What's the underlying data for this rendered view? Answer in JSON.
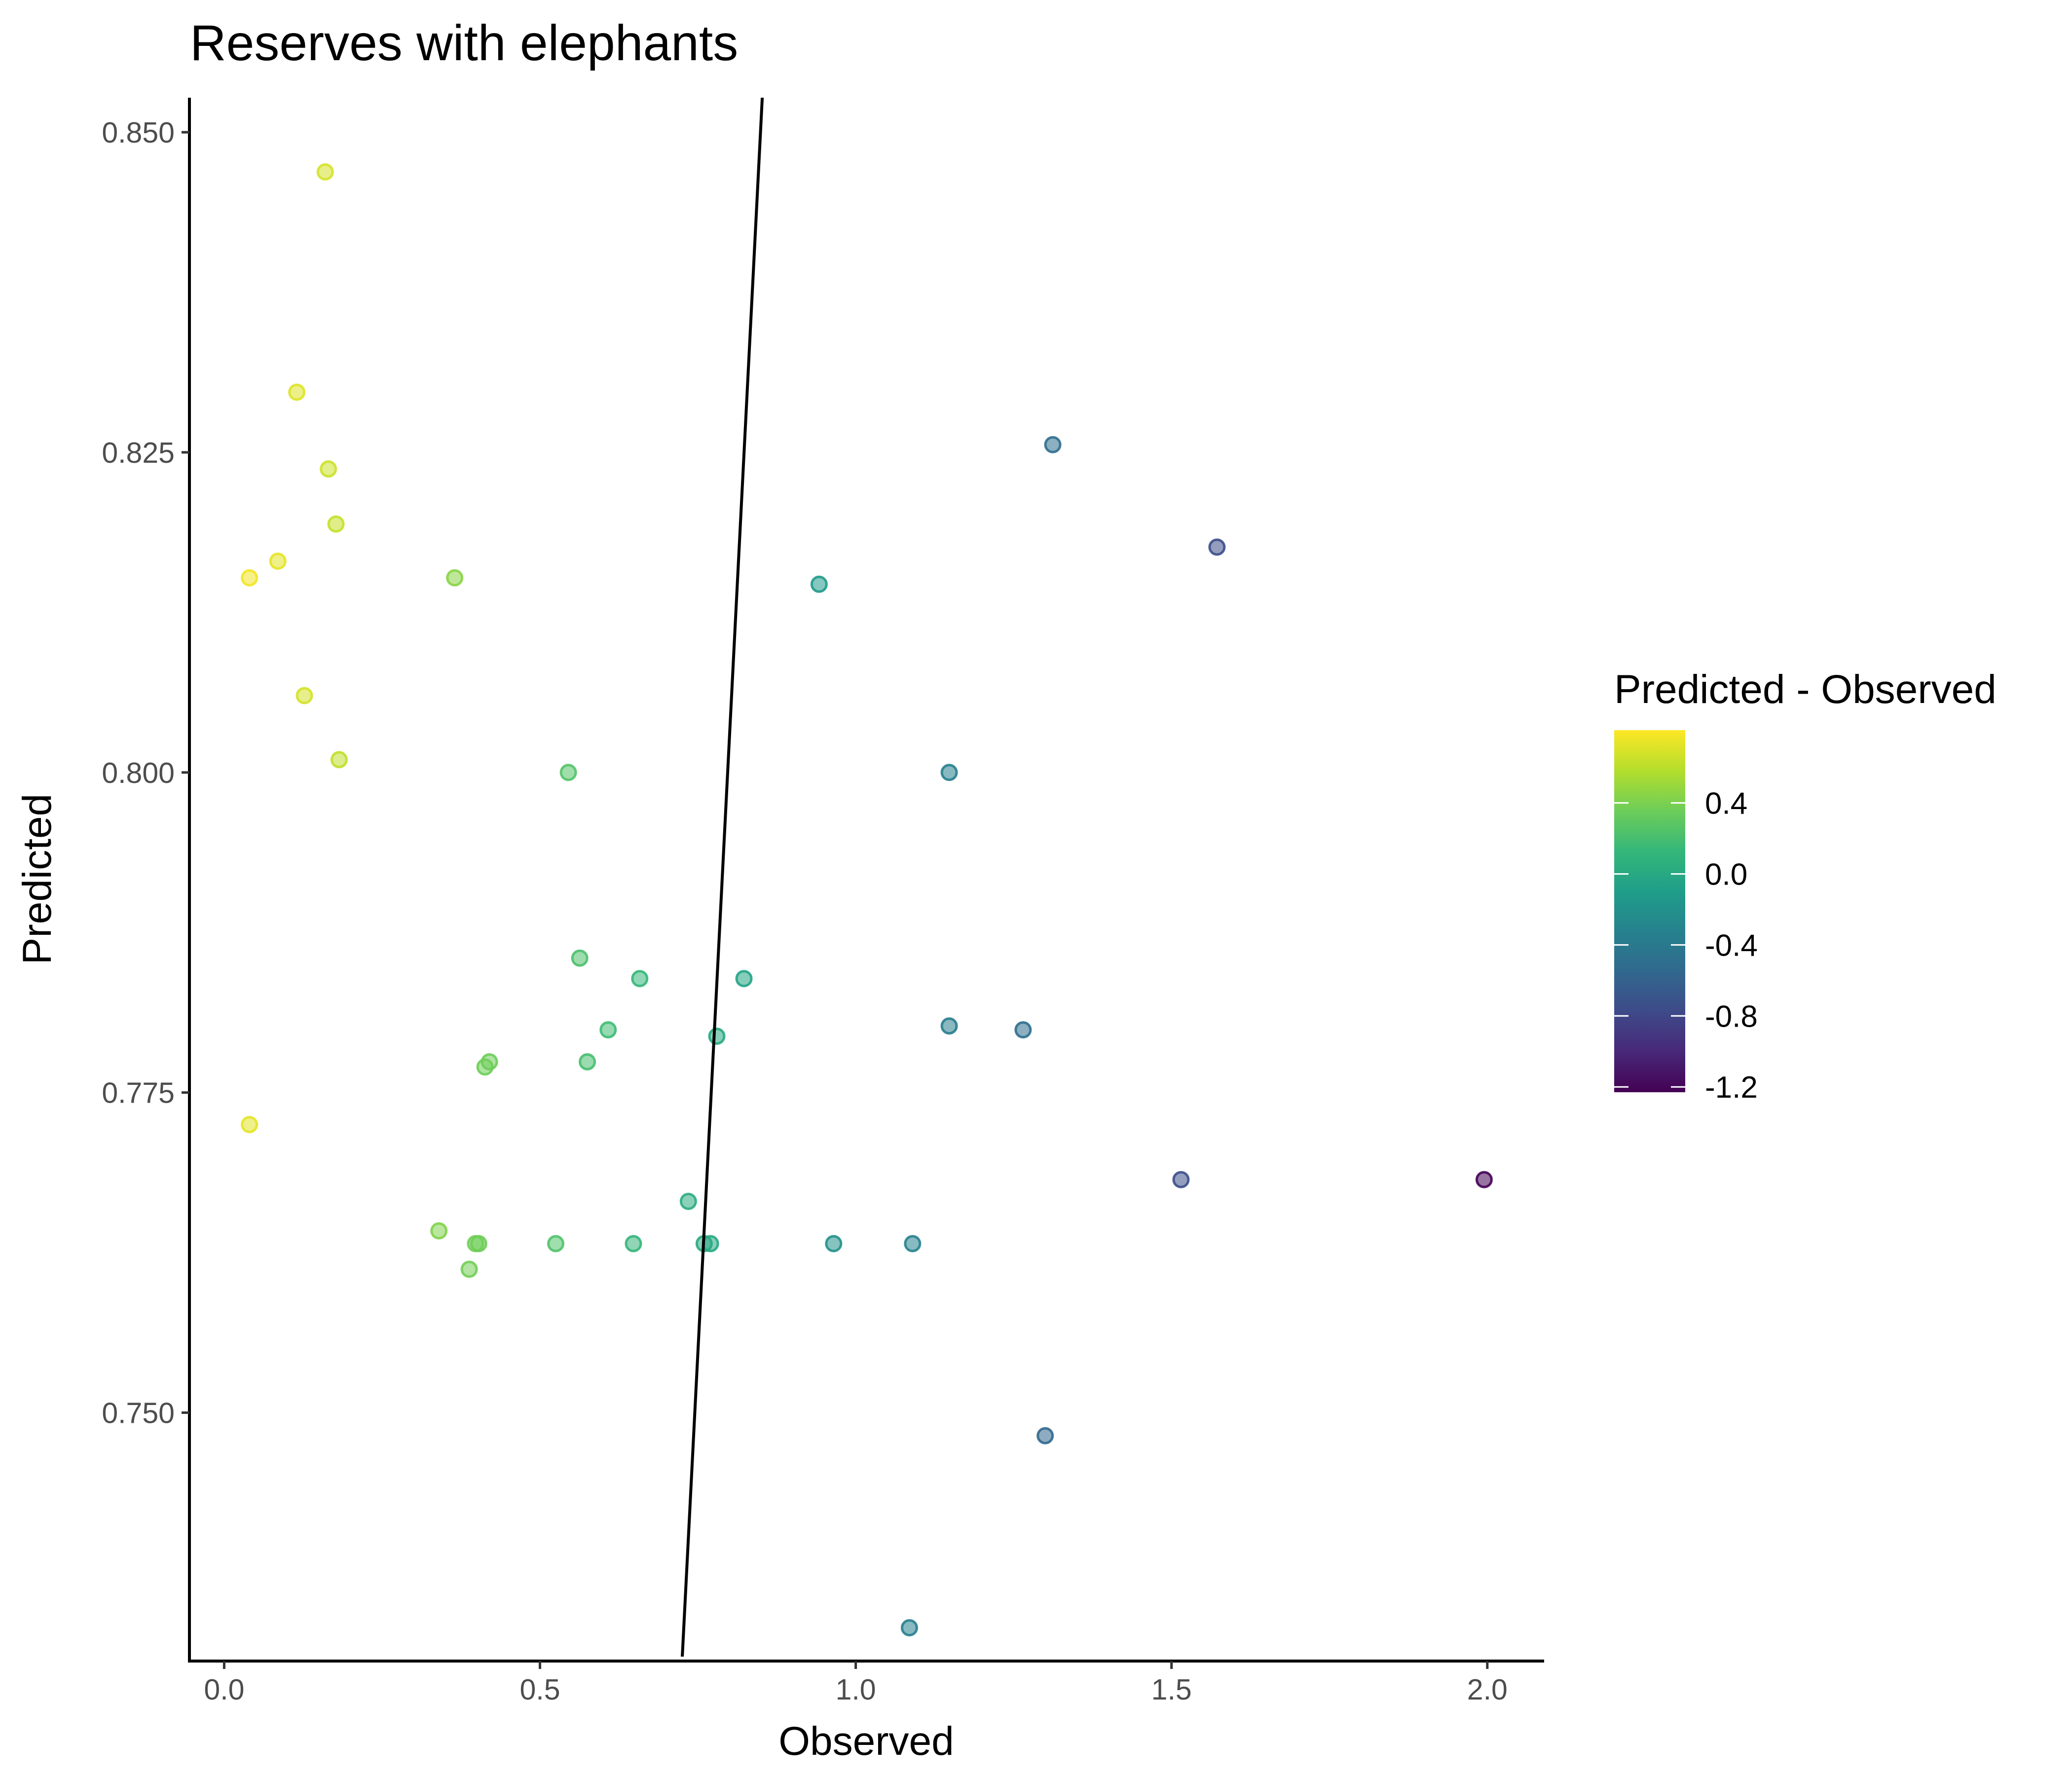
{
  "chart_data": {
    "type": "scatter",
    "title": "Reserves with elephants",
    "xlabel": "Observed",
    "ylabel": "Predicted",
    "xlim": [
      -0.055,
      2.09
    ],
    "ylim": [
      0.7306,
      0.8527
    ],
    "x_ticks": [
      {
        "value": 0.0,
        "label": "0.0"
      },
      {
        "value": 0.5,
        "label": "0.5"
      },
      {
        "value": 1.0,
        "label": "1.0"
      },
      {
        "value": 1.5,
        "label": "1.5"
      },
      {
        "value": 2.0,
        "label": "2.0"
      }
    ],
    "y_ticks": [
      {
        "value": 0.75,
        "label": "0.750"
      },
      {
        "value": 0.775,
        "label": "0.775"
      },
      {
        "value": 0.8,
        "label": "0.800"
      },
      {
        "value": 0.825,
        "label": "0.825"
      },
      {
        "value": 0.85,
        "label": "0.850"
      }
    ],
    "grid": false,
    "point_opacity": 0.55,
    "reference_line": {
      "description": "fitted line",
      "points": [
        {
          "x": 0.725,
          "y": 0.7306
        },
        {
          "x": 0.852,
          "y": 0.8527
        }
      ]
    },
    "color_scale": {
      "title": "Predicted - Observed",
      "palette": "viridis",
      "stops": [
        "#440154",
        "#482878",
        "#3E4A89",
        "#31688E",
        "#26828E",
        "#1F9E89",
        "#35B779",
        "#6DCD59",
        "#B4DE2C",
        "#FDE725"
      ],
      "domain": [
        -1.23,
        0.81
      ],
      "ticks": [
        {
          "value": 0.4,
          "label": "0.4"
        },
        {
          "value": 0.0,
          "label": "0.0"
        },
        {
          "value": -0.4,
          "label": "-0.4"
        },
        {
          "value": -0.8,
          "label": "-0.8"
        },
        {
          "value": -1.2,
          "label": "-1.2"
        }
      ],
      "position": "right"
    },
    "points": [
      {
        "x": 0.16,
        "y": 0.8469
      },
      {
        "x": 0.115,
        "y": 0.8297
      },
      {
        "x": 0.165,
        "y": 0.8237
      },
      {
        "x": 0.177,
        "y": 0.8194
      },
      {
        "x": 0.085,
        "y": 0.8165
      },
      {
        "x": 0.04,
        "y": 0.8152
      },
      {
        "x": 0.127,
        "y": 0.806
      },
      {
        "x": 0.182,
        "y": 0.801
      },
      {
        "x": 0.04,
        "y": 0.7725
      },
      {
        "x": 0.365,
        "y": 0.8152
      },
      {
        "x": 0.545,
        "y": 0.8
      },
      {
        "x": 0.563,
        "y": 0.7855
      },
      {
        "x": 0.658,
        "y": 0.7839
      },
      {
        "x": 0.608,
        "y": 0.7799
      },
      {
        "x": 0.575,
        "y": 0.7774
      },
      {
        "x": 0.42,
        "y": 0.7774
      },
      {
        "x": 0.413,
        "y": 0.777
      },
      {
        "x": 0.34,
        "y": 0.7642
      },
      {
        "x": 0.398,
        "y": 0.7632
      },
      {
        "x": 0.403,
        "y": 0.7632
      },
      {
        "x": 0.388,
        "y": 0.7612
      },
      {
        "x": 0.525,
        "y": 0.7632
      },
      {
        "x": 0.648,
        "y": 0.7632
      },
      {
        "x": 0.735,
        "y": 0.7665
      },
      {
        "x": 0.76,
        "y": 0.7632
      },
      {
        "x": 0.77,
        "y": 0.7632
      },
      {
        "x": 0.78,
        "y": 0.7794
      },
      {
        "x": 0.823,
        "y": 0.7839
      },
      {
        "x": 0.942,
        "y": 0.8147
      },
      {
        "x": 0.965,
        "y": 0.7632
      },
      {
        "x": 1.09,
        "y": 0.7632
      },
      {
        "x": 1.148,
        "y": 0.8
      },
      {
        "x": 1.148,
        "y": 0.7802
      },
      {
        "x": 1.265,
        "y": 0.7799
      },
      {
        "x": 1.312,
        "y": 0.8256
      },
      {
        "x": 1.3,
        "y": 0.7482
      },
      {
        "x": 1.085,
        "y": 0.7332
      },
      {
        "x": 1.515,
        "y": 0.7682
      },
      {
        "x": 1.572,
        "y": 0.8176
      },
      {
        "x": 1.995,
        "y": 0.7682
      }
    ]
  }
}
